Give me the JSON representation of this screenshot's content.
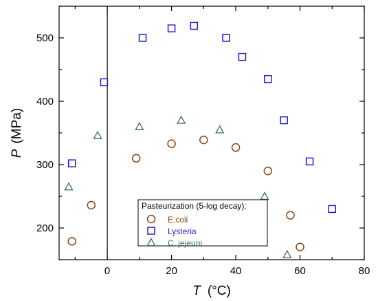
{
  "chart_data": {
    "type": "scatter",
    "xlim": [
      -15,
      80
    ],
    "ylim": [
      150,
      550
    ],
    "x_ticks": [
      0,
      20,
      40,
      60,
      80
    ],
    "y_ticks": [
      200,
      300,
      400,
      500
    ],
    "vertical_reference_line_x": 0,
    "grid": false,
    "legend_position": "bottom-center",
    "x_axis": {
      "symbol": "T",
      "unit": "(°C)"
    },
    "y_axis": {
      "symbol": "P",
      "unit": "(MPa)"
    },
    "legend_title": "Pasteurization (5-log decay):",
    "series": [
      {
        "name": "E.coli",
        "marker": "circle",
        "color": "#8B4513",
        "points": [
          {
            "x": -11,
            "y": 179
          },
          {
            "x": -5,
            "y": 236
          },
          {
            "x": 9,
            "y": 310
          },
          {
            "x": 20,
            "y": 333
          },
          {
            "x": 30,
            "y": 339
          },
          {
            "x": 40,
            "y": 327
          },
          {
            "x": 50,
            "y": 290
          },
          {
            "x": 57,
            "y": 220
          },
          {
            "x": 60,
            "y": 170
          }
        ]
      },
      {
        "name": "Lysteria",
        "marker": "square",
        "color": "#1E1ECC",
        "points": [
          {
            "x": -11,
            "y": 302
          },
          {
            "x": -1,
            "y": 430
          },
          {
            "x": 11,
            "y": 500
          },
          {
            "x": 20,
            "y": 515
          },
          {
            "x": 27,
            "y": 519
          },
          {
            "x": 37,
            "y": 500
          },
          {
            "x": 42,
            "y": 470
          },
          {
            "x": 50,
            "y": 435
          },
          {
            "x": 55,
            "y": 370
          },
          {
            "x": 63,
            "y": 305
          },
          {
            "x": 70,
            "y": 230
          }
        ]
      },
      {
        "name": "C. jejeuni",
        "marker": "triangle",
        "color": "#3C6E5A",
        "points": [
          {
            "x": -12,
            "y": 265
          },
          {
            "x": -3,
            "y": 346
          },
          {
            "x": 10,
            "y": 360
          },
          {
            "x": 23,
            "y": 370
          },
          {
            "x": 35,
            "y": 355
          },
          {
            "x": 49,
            "y": 250
          },
          {
            "x": 56,
            "y": 158
          }
        ]
      }
    ]
  }
}
